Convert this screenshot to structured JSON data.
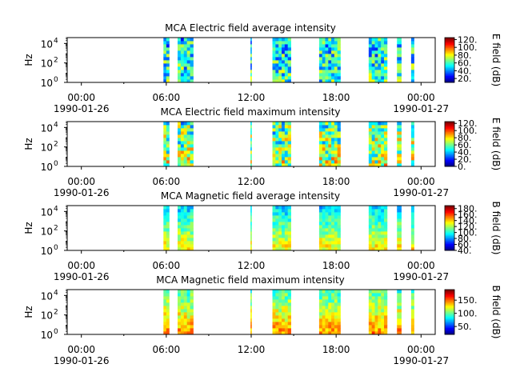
{
  "chart_data": [
    {
      "type": "heatmap",
      "title": "MCA  Electric field average intensity",
      "ylabel": "Hz",
      "yscale": "log",
      "ylim": [
        1,
        40000
      ],
      "y_ticks": [
        {
          "label": "10",
          "exp": "0"
        },
        {
          "label": "10",
          "exp": "2"
        },
        {
          "label": "10",
          "exp": "4"
        }
      ],
      "x_ticks": [
        {
          "time": "00:00",
          "date": "1990-01-26"
        },
        {
          "time": "06:00",
          "date": ""
        },
        {
          "time": "12:00",
          "date": ""
        },
        {
          "time": "18:00",
          "date": ""
        },
        {
          "time": "00:00",
          "date": "1990-01-27"
        }
      ],
      "xlim_hours": [
        -1,
        25
      ],
      "colorbar": {
        "label": "E field (dB)",
        "range": [
          10,
          125
        ],
        "ticks": [
          "20.",
          "40.",
          "60.",
          "80.",
          "100.",
          "120."
        ],
        "tick_values": [
          20,
          40,
          60,
          80,
          100,
          120
        ]
      },
      "data_intervals_hours": [
        [
          5.8,
          6.2
        ],
        [
          6.8,
          7.9
        ],
        [
          11.95,
          12.02
        ],
        [
          13.5,
          14.8
        ],
        [
          16.8,
          18.3
        ],
        [
          20.3,
          21.6
        ],
        [
          22.3,
          22.6
        ],
        [
          23.3,
          23.5
        ]
      ],
      "intensity_profile": {
        "low_freq": 60,
        "high_freq": 50,
        "variation": 25
      }
    },
    {
      "type": "heatmap",
      "title": "MCA  Electric field maximum intensity",
      "ylabel": "Hz",
      "yscale": "log",
      "ylim": [
        1,
        40000
      ],
      "y_ticks": [
        {
          "label": "10",
          "exp": "0"
        },
        {
          "label": "10",
          "exp": "2"
        },
        {
          "label": "10",
          "exp": "4"
        }
      ],
      "x_ticks": [
        {
          "time": "00:00",
          "date": "1990-01-26"
        },
        {
          "time": "06:00",
          "date": ""
        },
        {
          "time": "12:00",
          "date": ""
        },
        {
          "time": "18:00",
          "date": ""
        },
        {
          "time": "00:00",
          "date": "1990-01-27"
        }
      ],
      "xlim_hours": [
        -1,
        25
      ],
      "colorbar": {
        "label": "E field (dB)",
        "range": [
          0,
          125
        ],
        "ticks": [
          "0.",
          "20.",
          "40.",
          "60.",
          "80.",
          "100.",
          "120."
        ],
        "tick_values": [
          0,
          20,
          40,
          60,
          80,
          100,
          120
        ]
      },
      "data_intervals_hours": [
        [
          5.8,
          6.2
        ],
        [
          6.8,
          7.9
        ],
        [
          11.95,
          12.02
        ],
        [
          13.5,
          14.8
        ],
        [
          16.8,
          18.3
        ],
        [
          20.3,
          21.6
        ],
        [
          22.3,
          22.6
        ],
        [
          23.3,
          23.5
        ]
      ],
      "intensity_profile": {
        "low_freq": 70,
        "high_freq": 55,
        "variation": 30
      }
    },
    {
      "type": "heatmap",
      "title": "MCA  Magnetic field average intensity",
      "ylabel": "Hz",
      "yscale": "log",
      "ylim": [
        1,
        40000
      ],
      "y_ticks": [
        {
          "label": "10",
          "exp": "0"
        },
        {
          "label": "10",
          "exp": "2"
        },
        {
          "label": "10",
          "exp": "4"
        }
      ],
      "x_ticks": [
        {
          "time": "00:00",
          "date": "1990-01-26"
        },
        {
          "time": "06:00",
          "date": ""
        },
        {
          "time": "12:00",
          "date": ""
        },
        {
          "time": "18:00",
          "date": ""
        },
        {
          "time": "00:00",
          "date": "1990-01-27"
        }
      ],
      "xlim_hours": [
        -1,
        25
      ],
      "colorbar": {
        "label": "B field (dB)",
        "range": [
          40,
          190
        ],
        "ticks": [
          "40.",
          "60.",
          "80.",
          "100.",
          "120.",
          "140.",
          "160.",
          "180."
        ],
        "tick_values": [
          40,
          60,
          80,
          100,
          120,
          140,
          160,
          180
        ]
      },
      "data_intervals_hours": [
        [
          5.8,
          6.2
        ],
        [
          6.8,
          7.9
        ],
        [
          11.95,
          12.02
        ],
        [
          13.5,
          14.8
        ],
        [
          16.8,
          18.3
        ],
        [
          20.3,
          21.6
        ],
        [
          22.3,
          22.6
        ],
        [
          23.3,
          23.5
        ]
      ],
      "intensity_profile": {
        "low_freq": 135,
        "high_freq": 90,
        "variation": 15
      }
    },
    {
      "type": "heatmap",
      "title": "MCA  Magnetic field maximum intensity",
      "ylabel": "Hz",
      "yscale": "log",
      "ylim": [
        1,
        40000
      ],
      "y_ticks": [
        {
          "label": "10",
          "exp": "0"
        },
        {
          "label": "10",
          "exp": "2"
        },
        {
          "label": "10",
          "exp": "4"
        }
      ],
      "x_ticks": [
        {
          "time": "00:00",
          "date": "1990-01-26"
        },
        {
          "time": "06:00",
          "date": ""
        },
        {
          "time": "12:00",
          "date": ""
        },
        {
          "time": "18:00",
          "date": ""
        },
        {
          "time": "00:00",
          "date": "1990-01-27"
        }
      ],
      "xlim_hours": [
        -1,
        25
      ],
      "colorbar": {
        "label": "B field (dB)",
        "range": [
          20,
          190
        ],
        "ticks": [
          "50.",
          "100.",
          "150."
        ],
        "tick_values": [
          50,
          100,
          150
        ]
      },
      "data_intervals_hours": [
        [
          5.8,
          6.2
        ],
        [
          6.8,
          7.9
        ],
        [
          11.95,
          12.02
        ],
        [
          13.5,
          14.8
        ],
        [
          16.8,
          18.3
        ],
        [
          20.3,
          21.6
        ],
        [
          22.3,
          22.6
        ],
        [
          23.3,
          23.5
        ]
      ],
      "intensity_profile": {
        "low_freq": 145,
        "high_freq": 95,
        "variation": 18
      }
    }
  ]
}
